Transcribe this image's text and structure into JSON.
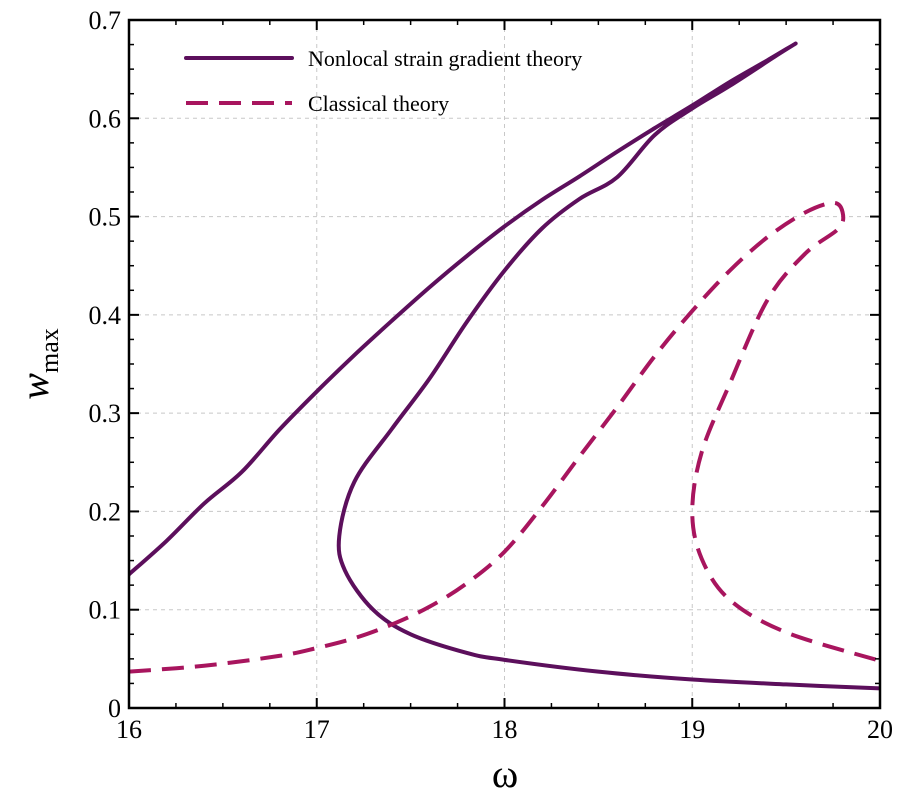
{
  "chart_data": {
    "type": "line",
    "xlabel": "ω",
    "ylabel": "w",
    "ylabel_sub": "max",
    "xlim": [
      16,
      20
    ],
    "ylim": [
      0,
      0.7
    ],
    "xticks": [
      "16",
      "17",
      "18",
      "19",
      "20"
    ],
    "yticks": [
      "0",
      "0.1",
      "0.2",
      "0.3",
      "0.4",
      "0.5",
      "0.6",
      "0.7"
    ],
    "grid": true,
    "legend": {
      "placement": "top-left"
    },
    "series": [
      {
        "name": "Nonlocal strain gradient theory",
        "style": "solid",
        "color": "#5c0f5c",
        "points": [
          [
            16.0,
            0.136
          ],
          [
            16.2,
            0.17
          ],
          [
            16.4,
            0.208
          ],
          [
            16.6,
            0.24
          ],
          [
            16.8,
            0.283
          ],
          [
            17.0,
            0.322
          ],
          [
            17.2,
            0.359
          ],
          [
            17.4,
            0.394
          ],
          [
            17.6,
            0.428
          ],
          [
            17.8,
            0.46
          ],
          [
            18.0,
            0.49
          ],
          [
            18.2,
            0.517
          ],
          [
            18.4,
            0.541
          ],
          [
            18.6,
            0.566
          ],
          [
            18.8,
            0.59
          ],
          [
            19.0,
            0.613
          ],
          [
            19.2,
            0.637
          ],
          [
            19.4,
            0.659
          ],
          [
            19.55,
            0.676
          ],
          [
            19.45,
            0.664
          ],
          [
            19.2,
            0.633
          ],
          [
            19.0,
            0.61
          ],
          [
            18.8,
            0.583
          ],
          [
            18.6,
            0.54
          ],
          [
            18.4,
            0.518
          ],
          [
            18.2,
            0.488
          ],
          [
            18.0,
            0.445
          ],
          [
            17.8,
            0.393
          ],
          [
            17.6,
            0.335
          ],
          [
            17.4,
            0.284
          ],
          [
            17.2,
            0.23
          ],
          [
            17.12,
            0.175
          ],
          [
            17.15,
            0.14
          ],
          [
            17.3,
            0.1
          ],
          [
            17.5,
            0.075
          ],
          [
            17.8,
            0.056
          ],
          [
            18.0,
            0.049
          ],
          [
            18.5,
            0.037
          ],
          [
            19.0,
            0.029
          ],
          [
            19.5,
            0.024
          ],
          [
            20.0,
            0.02
          ]
        ]
      },
      {
        "name": "Classical theory",
        "style": "dashed",
        "color": "#a8155e",
        "points": [
          [
            16.0,
            0.037
          ],
          [
            16.4,
            0.043
          ],
          [
            16.8,
            0.053
          ],
          [
            17.0,
            0.061
          ],
          [
            17.2,
            0.071
          ],
          [
            17.4,
            0.085
          ],
          [
            17.6,
            0.103
          ],
          [
            17.8,
            0.127
          ],
          [
            18.0,
            0.159
          ],
          [
            18.2,
            0.205
          ],
          [
            18.4,
            0.256
          ],
          [
            18.6,
            0.306
          ],
          [
            18.8,
            0.358
          ],
          [
            19.0,
            0.404
          ],
          [
            19.2,
            0.445
          ],
          [
            19.4,
            0.479
          ],
          [
            19.6,
            0.504
          ],
          [
            19.75,
            0.514
          ],
          [
            19.8,
            0.505
          ],
          [
            19.78,
            0.488
          ],
          [
            19.6,
            0.462
          ],
          [
            19.4,
            0.415
          ],
          [
            19.2,
            0.33
          ],
          [
            19.05,
            0.26
          ],
          [
            19.0,
            0.2
          ],
          [
            19.05,
            0.152
          ],
          [
            19.2,
            0.11
          ],
          [
            19.5,
            0.077
          ],
          [
            20.0,
            0.048
          ]
        ]
      }
    ]
  }
}
